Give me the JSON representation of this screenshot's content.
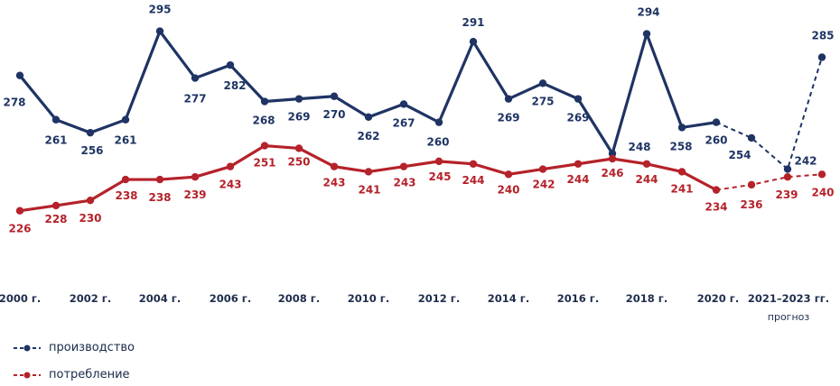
{
  "chart_data": {
    "type": "line",
    "x": [
      "2000",
      "2001",
      "2002",
      "2003",
      "2004",
      "2005",
      "2006",
      "2007",
      "2008",
      "2009",
      "2010",
      "2011",
      "2012",
      "2013",
      "2014",
      "2015",
      "2016",
      "2017",
      "2018",
      "2019",
      "2020",
      "2021",
      "2022",
      "2023"
    ],
    "x_tick_labels": [
      "2000 г.",
      "2002 г.",
      "2004 г.",
      "2006 г.",
      "2008 г.",
      "2010 г.",
      "2012 г.",
      "2014 г.",
      "2016 г.",
      "2018 г.",
      "2020 г.",
      "2021–2023 гг."
    ],
    "forecast_label": "прогноз",
    "forecast_from_index": 20,
    "series": [
      {
        "name": "производство",
        "color": "#1f3464",
        "values": [
          278,
          261,
          256,
          261,
          295,
          277,
          282,
          268,
          269,
          270,
          262,
          267,
          260,
          291,
          269,
          275,
          269,
          248,
          294,
          258,
          260,
          254,
          242,
          285
        ]
      },
      {
        "name": "потребление",
        "color": "#b5222a",
        "values": [
          226,
          228,
          230,
          238,
          238,
          239,
          243,
          251,
          250,
          243,
          241,
          243,
          245,
          244,
          240,
          242,
          244,
          246,
          244,
          241,
          234,
          236,
          239,
          240
        ]
      }
    ],
    "grid": false,
    "legend_position": "bottom-left"
  }
}
